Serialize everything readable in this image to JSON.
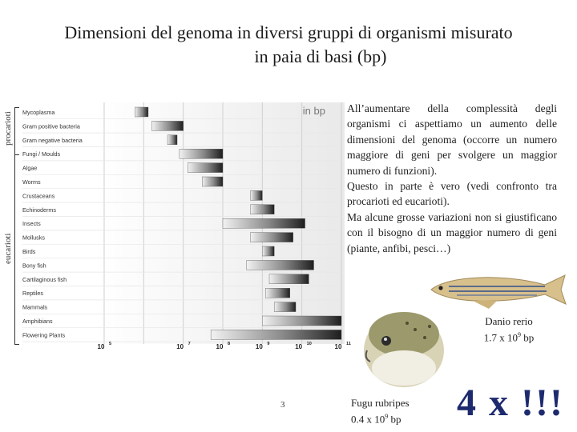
{
  "title": {
    "line1": "Dimensioni del genoma in diversi gruppi di organismi misurato",
    "line2": "in paia di basi (bp)"
  },
  "side_labels": {
    "prokaryotes": "procarioti",
    "eukaryotes": "eucarioti"
  },
  "chart_data": {
    "type": "bar",
    "subtitle": "in bp",
    "x_scale": "log",
    "x_ticks": [
      {
        "base": "10",
        "exp": "5",
        "value": 100000
      },
      {
        "base": "10",
        "exp": "7",
        "value": 10000000
      },
      {
        "base": "10",
        "exp": "8",
        "value": 100000000
      },
      {
        "base": "10",
        "exp": "9",
        "value": 1000000000
      },
      {
        "base": "10",
        "exp": "10",
        "value": 10000000000
      },
      {
        "base": "10",
        "exp": "11",
        "value": 100000000000
      }
    ],
    "xlim": [
      100000,
      100000000000
    ],
    "grid": true,
    "categories": [
      "Mycoplasma",
      "Gram positive bacteria",
      "Gram negative bacteria",
      "Fungi / Moulds",
      "Algae",
      "Worms",
      "Crustaceans",
      "Echinoderms",
      "Insects",
      "Mollusks",
      "Birds",
      "Bony fish",
      "Cartilaginous fish",
      "Reptiles",
      "Mammals",
      "Amphibians",
      "Flowering Plants"
    ],
    "ranges": [
      [
        600000,
        1300000
      ],
      [
        1600000,
        10000000
      ],
      [
        4000000,
        7000000
      ],
      [
        8000000,
        100000000
      ],
      [
        13000000,
        100000000
      ],
      [
        30000000,
        100000000
      ],
      [
        500000000,
        1000000000
      ],
      [
        500000000,
        2000000000
      ],
      [
        100000000,
        12000000000
      ],
      [
        500000000,
        6000000000
      ],
      [
        1000000000,
        2000000000
      ],
      [
        400000000,
        20000000000
      ],
      [
        1500000000,
        15000000000
      ],
      [
        1200000000,
        5000000000
      ],
      [
        2000000000,
        7000000000
      ],
      [
        1000000000,
        100000000000
      ],
      [
        50000000,
        100000000000
      ]
    ]
  },
  "description": [
    "All’aumentare della complessità degli organismi ci aspettiamo un aumento delle dimensioni del genoma (occorre un numero maggiore di geni per svolgere un maggior numero di funzioni).",
    "Questo in parte è vero (vedi confronto tra procarioti ed eucarioti).",
    "Ma alcune grosse variazioni non si giustificano con il bisogno di un maggior numero di geni (piante, anfibi, pesci…)"
  ],
  "danio": {
    "name": "Danio rerio",
    "size_prefix": "1.7 x 10",
    "size_exp": "9",
    "size_unit": "bp"
  },
  "fugu": {
    "name": "Fugu rubripes",
    "size_prefix": "0.4 x 10",
    "size_exp": "9",
    "size_unit": "bp"
  },
  "page_number": "3",
  "emphasis": "4 x !!!",
  "colors": {
    "big_text": "#1e2a6e",
    "bracket": "#333333"
  }
}
